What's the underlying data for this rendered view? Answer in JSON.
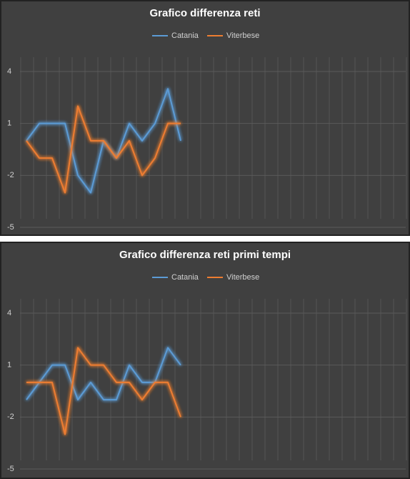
{
  "chart_data": [
    {
      "type": "line",
      "title": "Grafico differenza reti",
      "categories": [
        null,
        null,
        null,
        null,
        null,
        null,
        null,
        null,
        null,
        null,
        null,
        null,
        null,
        null,
        null,
        null,
        null,
        null,
        null,
        null,
        null,
        null,
        null,
        null,
        null,
        null,
        null,
        null,
        null,
        null
      ],
      "series": [
        {
          "name": "Catania",
          "color": "#5b9bd5",
          "values": [
            0,
            1,
            1,
            1,
            -2,
            -3,
            0,
            -1,
            1,
            0,
            1,
            3,
            0,
            null,
            null,
            null,
            null,
            null,
            null,
            null,
            null,
            null,
            null,
            null,
            null,
            null,
            null,
            null,
            null,
            null
          ]
        },
        {
          "name": "Viterbese",
          "color": "#ed7d31",
          "values": [
            0,
            -1,
            -1,
            -3,
            2,
            0,
            0,
            -1,
            0,
            -2,
            -1,
            1,
            1,
            null,
            null,
            null,
            null,
            null,
            null,
            null,
            null,
            null,
            null,
            null,
            null,
            null,
            null,
            null,
            null,
            null
          ]
        }
      ],
      "ylim": [
        -5,
        4
      ],
      "yticks": [
        -5,
        -2,
        1,
        4
      ],
      "grid": true,
      "legend": "top"
    },
    {
      "type": "line",
      "title": "Grafico differenza reti primi tempi",
      "categories": [
        null,
        null,
        null,
        null,
        null,
        null,
        null,
        null,
        null,
        null,
        null,
        null,
        null,
        null,
        null,
        null,
        null,
        null,
        null,
        null,
        null,
        null,
        null,
        null,
        null,
        null,
        null,
        null,
        null,
        null
      ],
      "series": [
        {
          "name": "Catania",
          "color": "#5b9bd5",
          "values": [
            -1,
            0,
            1,
            1,
            -1,
            0,
            -1,
            -1,
            1,
            0,
            0,
            2,
            1,
            null,
            null,
            null,
            null,
            null,
            null,
            null,
            null,
            null,
            null,
            null,
            null,
            null,
            null,
            null,
            null,
            null
          ]
        },
        {
          "name": "Viterbese",
          "color": "#ed7d31",
          "values": [
            0,
            0,
            0,
            -3,
            2,
            1,
            1,
            0,
            0,
            -1,
            0,
            0,
            -2,
            null,
            null,
            null,
            null,
            null,
            null,
            null,
            null,
            null,
            null,
            null,
            null,
            null,
            null,
            null,
            null,
            null
          ]
        }
      ],
      "ylim": [
        -5,
        4
      ],
      "yticks": [
        -5,
        -2,
        1,
        4
      ],
      "grid": true,
      "legend": "top"
    }
  ]
}
